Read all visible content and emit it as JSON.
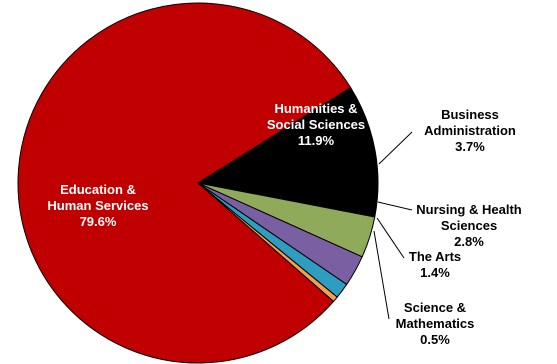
{
  "chart_data": {
    "type": "pie",
    "title": "",
    "slices": [
      {
        "label_lines": [
          "Humanities &",
          "Social Sciences"
        ],
        "value": 11.9,
        "value_text": "11.9%",
        "color": "#000000",
        "label_placement": "inside"
      },
      {
        "label_lines": [
          "Business",
          "Administration"
        ],
        "value": 3.7,
        "value_text": "3.7%",
        "color": "#8FAA5A",
        "label_placement": "outside"
      },
      {
        "label_lines": [
          "Nursing & Health",
          "Sciences"
        ],
        "value": 2.8,
        "value_text": "2.8%",
        "color": "#7A5FA3",
        "label_placement": "outside"
      },
      {
        "label_lines": [
          "The Arts"
        ],
        "value": 1.4,
        "value_text": "1.4%",
        "color": "#2F9DC0",
        "label_placement": "outside"
      },
      {
        "label_lines": [
          "Science &",
          "Mathematics"
        ],
        "value": 0.5,
        "value_text": "0.5%",
        "color": "#F0A050",
        "label_placement": "outside"
      },
      {
        "label_lines": [
          "Education &",
          "Human Services"
        ],
        "value": 79.6,
        "value_text": "79.6%",
        "color": "#C00000",
        "label_placement": "inside"
      }
    ],
    "legend": "none",
    "start_angle_deg": -32,
    "direction": "clockwise"
  }
}
